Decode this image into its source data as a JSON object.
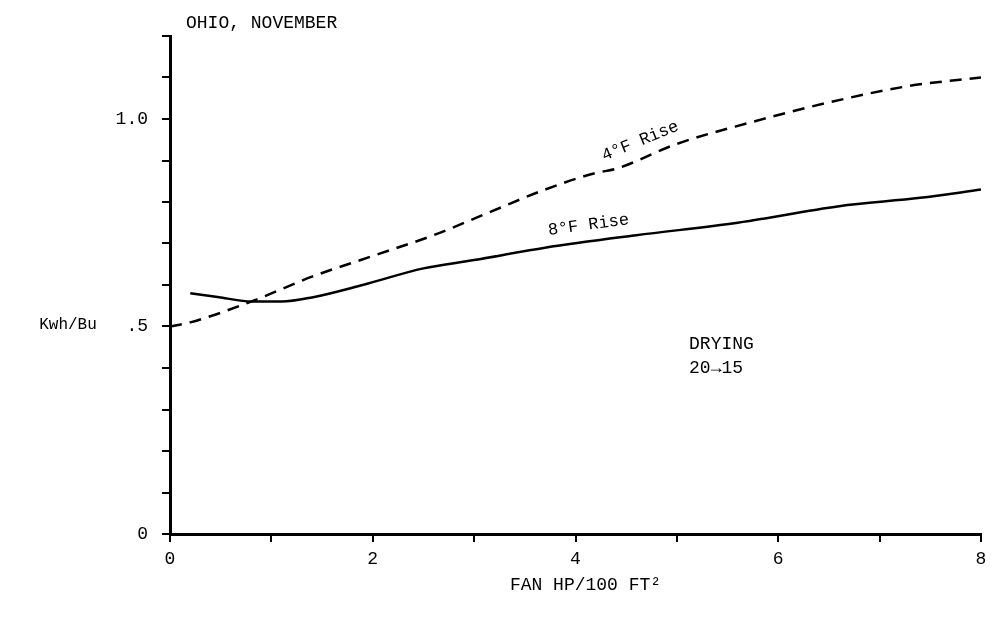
{
  "chart_data": {
    "type": "line",
    "title": "OHIO, NOVEMBER",
    "xlabel": "FAN HP/100 FT²",
    "ylabel": "Kwh/Bu",
    "series": [
      {
        "name": "4°F Rise",
        "color": "#000000",
        "line_style": "dashed",
        "x": [
          0,
          0.2,
          0.8,
          1.4,
          2,
          2.6,
          3.1,
          3.7,
          4.2,
          4.4,
          5,
          5.7,
          6.5,
          7.3,
          8
        ],
        "values": [
          0.5,
          0.51,
          0.56,
          0.62,
          0.67,
          0.72,
          0.77,
          0.83,
          0.87,
          0.88,
          0.94,
          0.99,
          1.04,
          1.08,
          1.1
        ]
      },
      {
        "name": "8°F Rise",
        "color": "#000000",
        "line_style": "solid",
        "x": [
          0.2,
          0.5,
          0.8,
          1.1,
          1.4,
          1.9,
          2.5,
          3,
          3.7,
          4.6,
          5.6,
          6.6,
          7.4,
          8
        ],
        "values": [
          0.58,
          0.57,
          0.56,
          0.56,
          0.57,
          0.6,
          0.64,
          0.66,
          0.69,
          0.72,
          0.75,
          0.79,
          0.81,
          0.83
        ]
      }
    ],
    "xlim": [
      0,
      8
    ],
    "ylim": [
      0,
      1.2
    ],
    "xticks": [
      0,
      {
        "value": 1,
        "label": null
      },
      2,
      {
        "value": 3,
        "label": null
      },
      4,
      {
        "value": 5,
        "label": null
      },
      6,
      {
        "value": 7,
        "label": null
      },
      8
    ],
    "yticks": [
      0,
      {
        "value": 0.1,
        "label": null
      },
      {
        "value": 0.2,
        "label": null
      },
      {
        "value": 0.3,
        "label": null
      },
      {
        "value": 0.4,
        "label": null
      },
      {
        "value": 0.5,
        "label": ".5"
      },
      {
        "value": 0.6,
        "label": null
      },
      {
        "value": 0.7,
        "label": null
      },
      {
        "value": 0.8,
        "label": null
      },
      {
        "value": 0.9,
        "label": null
      },
      {
        "value": 1,
        "label": "1.0"
      },
      {
        "value": 1.1,
        "label": null
      },
      {
        "value": 1.2,
        "label": null
      }
    ],
    "grid": false,
    "legend": false,
    "annotations": [
      "DRYING\n20→15"
    ]
  }
}
